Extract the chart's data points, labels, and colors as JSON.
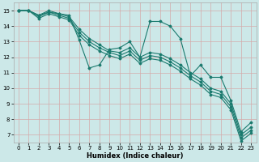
{
  "background_color": "#cce8e8",
  "grid_color": "#b8d4d4",
  "line_color": "#1a7a6e",
  "xlabel": "Humidex (Indice chaleur)",
  "xlim": [
    -0.5,
    23.5
  ],
  "ylim": [
    6.5,
    15.5
  ],
  "xticks": [
    0,
    1,
    2,
    3,
    4,
    5,
    6,
    7,
    8,
    9,
    10,
    11,
    12,
    13,
    14,
    15,
    16,
    17,
    18,
    19,
    20,
    21,
    22,
    23
  ],
  "yticks": [
    7,
    8,
    9,
    10,
    11,
    12,
    13,
    14,
    15
  ],
  "series": [
    [
      15.0,
      15.0,
      14.7,
      15.0,
      14.8,
      14.7,
      13.1,
      11.3,
      11.5,
      12.5,
      12.6,
      13.0,
      12.0,
      14.3,
      14.3,
      14.0,
      13.2,
      10.8,
      11.5,
      10.7,
      10.7,
      9.2,
      7.2,
      7.8
    ],
    [
      15.0,
      15.0,
      14.7,
      14.9,
      14.8,
      14.6,
      13.8,
      13.2,
      12.8,
      12.4,
      12.3,
      12.6,
      12.0,
      12.3,
      12.2,
      11.9,
      11.5,
      11.0,
      10.6,
      10.0,
      9.8,
      9.0,
      7.0,
      7.5
    ],
    [
      15.0,
      15.0,
      14.6,
      14.9,
      14.7,
      14.5,
      13.6,
      13.0,
      12.6,
      12.3,
      12.1,
      12.4,
      11.8,
      12.1,
      12.0,
      11.7,
      11.3,
      10.8,
      10.4,
      9.8,
      9.6,
      8.8,
      6.8,
      7.3
    ],
    [
      15.0,
      15.0,
      14.5,
      14.8,
      14.6,
      14.4,
      13.4,
      12.8,
      12.4,
      12.1,
      11.9,
      12.2,
      11.6,
      11.9,
      11.8,
      11.5,
      11.1,
      10.6,
      10.2,
      9.6,
      9.4,
      8.6,
      6.6,
      7.1
    ]
  ]
}
